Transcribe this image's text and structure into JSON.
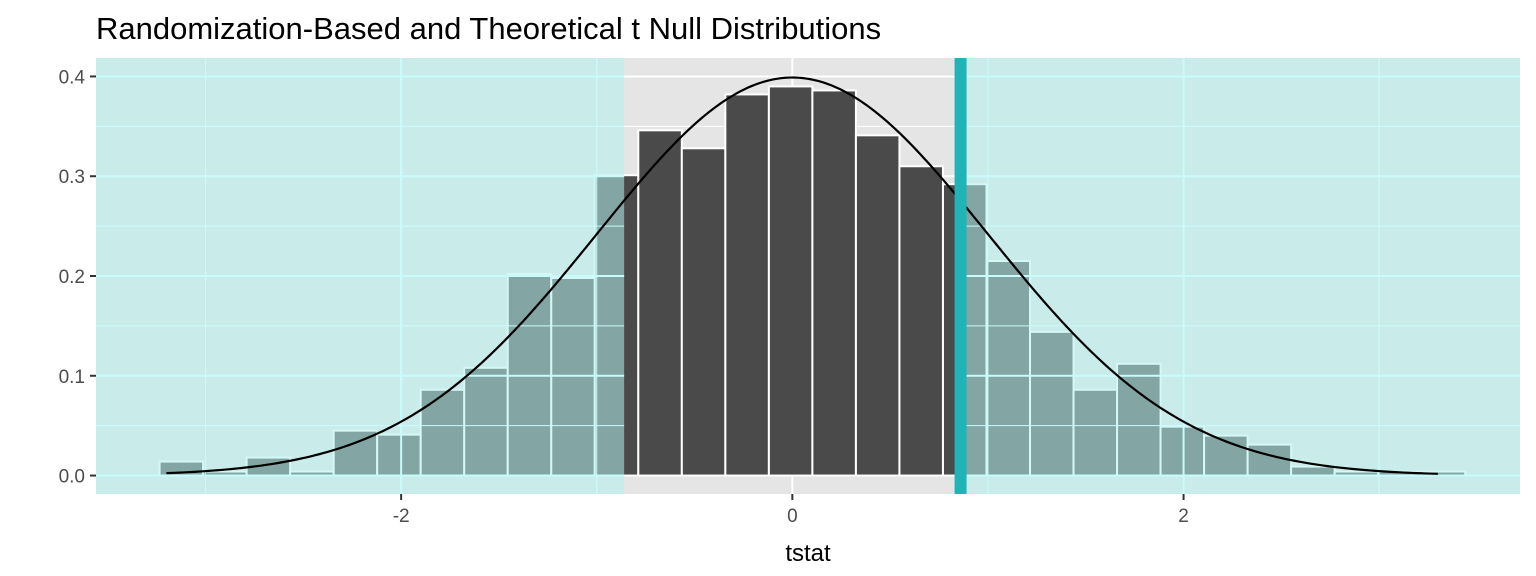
{
  "chart_data": {
    "type": "bar",
    "title": "Randomization-Based and Theoretical t Null Distributions",
    "xlabel": "tstat",
    "ylabel": "",
    "xlim": [
      -3.56,
      3.72
    ],
    "ylim": [
      -0.0185,
      0.4185
    ],
    "x_ticks": [
      -2,
      0,
      2
    ],
    "x_tick_labels": [
      "-2",
      "0",
      "2"
    ],
    "y_ticks": [
      0.0,
      0.1,
      0.2,
      0.3,
      0.4
    ],
    "y_tick_labels": [
      "0.0",
      "0.1",
      "0.2",
      "0.3",
      "0.4"
    ],
    "grid": true,
    "histogram": {
      "bin_width": 0.2225,
      "bins": [
        {
          "start": -3.235,
          "end": -3.0125,
          "density": 0.014
        },
        {
          "start": -3.0125,
          "end": -2.79,
          "density": 0.004
        },
        {
          "start": -2.79,
          "end": -2.5675,
          "density": 0.018
        },
        {
          "start": -2.5675,
          "end": -2.345,
          "density": 0.004
        },
        {
          "start": -2.345,
          "end": -2.1225,
          "density": 0.045
        },
        {
          "start": -2.1225,
          "end": -1.9,
          "density": 0.041
        },
        {
          "start": -1.9,
          "end": -1.6775,
          "density": 0.086
        },
        {
          "start": -1.6775,
          "end": -1.455,
          "density": 0.108
        },
        {
          "start": -1.455,
          "end": -1.2325,
          "density": 0.202
        },
        {
          "start": -1.2325,
          "end": -1.01,
          "density": 0.198
        },
        {
          "start": -1.01,
          "end": -0.7875,
          "density": 0.301
        },
        {
          "start": -0.7875,
          "end": -0.565,
          "density": 0.346
        },
        {
          "start": -0.565,
          "end": -0.3425,
          "density": 0.328
        },
        {
          "start": -0.3425,
          "end": -0.12,
          "density": 0.382
        },
        {
          "start": -0.12,
          "end": 0.1025,
          "density": 0.39
        },
        {
          "start": 0.1025,
          "end": 0.325,
          "density": 0.386
        },
        {
          "start": 0.325,
          "end": 0.5475,
          "density": 0.341
        },
        {
          "start": 0.5475,
          "end": 0.77,
          "density": 0.31
        },
        {
          "start": 0.77,
          "end": 0.9925,
          "density": 0.292
        },
        {
          "start": 0.9925,
          "end": 1.215,
          "density": 0.215
        },
        {
          "start": 1.215,
          "end": 1.4375,
          "density": 0.144
        },
        {
          "start": 1.4375,
          "end": 1.66,
          "density": 0.086
        },
        {
          "start": 1.66,
          "end": 1.8825,
          "density": 0.112
        },
        {
          "start": 1.8825,
          "end": 2.105,
          "density": 0.049
        },
        {
          "start": 2.105,
          "end": 2.3275,
          "density": 0.04
        },
        {
          "start": 2.3275,
          "end": 2.55,
          "density": 0.031
        },
        {
          "start": 2.55,
          "end": 2.7725,
          "density": 0.009
        },
        {
          "start": 2.7725,
          "end": 2.995,
          "density": 0.004
        },
        {
          "start": 2.995,
          "end": 3.2175,
          "density": 0.004
        },
        {
          "start": 3.2175,
          "end": 3.44,
          "density": 0.004
        }
      ]
    },
    "theoretical_curve": {
      "distribution": "t",
      "x_range": [
        -3.2,
        3.3
      ]
    },
    "observed_statistic": 0.86,
    "shaded_region": "both tails, |t| >= 0.86",
    "colors": {
      "panel_background": "#e5e5e5",
      "gridline": "#ffffff",
      "bar_fill": "#4a4a4a",
      "bar_outline": "#ffffff",
      "shade_fill": "#b2f0ef",
      "shade_opacity": 0.55,
      "shade_gridline": "#c9fbfb",
      "observed_line": "#1fb5b7",
      "curve": "#000000"
    }
  }
}
